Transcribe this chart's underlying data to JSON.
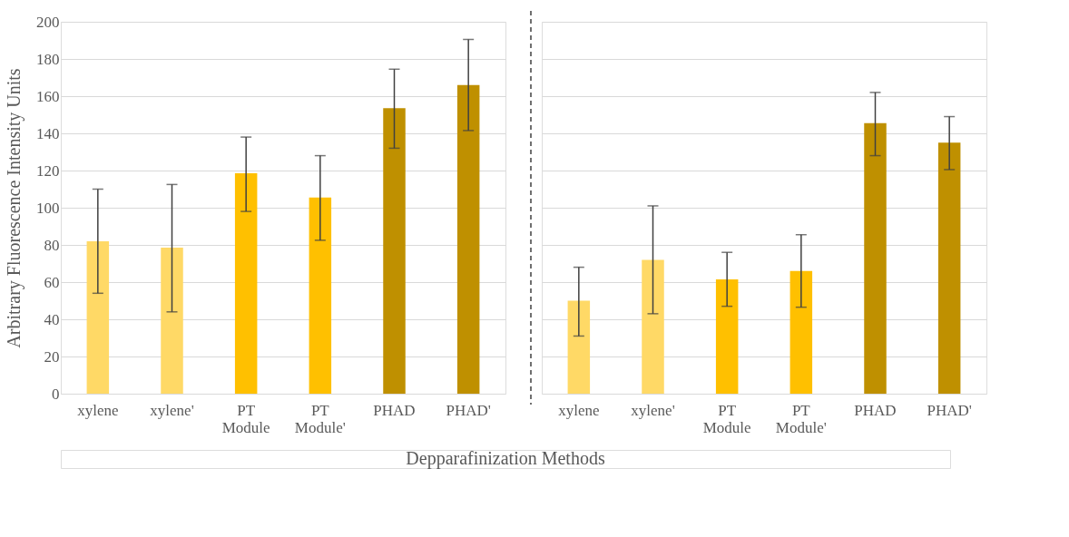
{
  "chart_data": [
    {
      "type": "bar",
      "ylabel": "Arbitrary Fluorescence Intensity Units",
      "xlabel": "Depparafinization Methods",
      "categories": [
        "xylene",
        "xylene'",
        "PT Module",
        "PT Module'",
        "PHAD",
        "PHAD'"
      ],
      "values": [
        82,
        78.5,
        118.5,
        105.5,
        153.5,
        166
      ],
      "errors": [
        [
          54,
          110
        ],
        [
          44,
          112.5
        ],
        [
          98,
          138
        ],
        [
          82.5,
          128
        ],
        [
          132,
          174.5
        ],
        [
          141.5,
          190.5
        ]
      ],
      "colors": [
        "#ffd966",
        "#ffd966",
        "#ffc000",
        "#ffc000",
        "#bf9000",
        "#bf9000"
      ],
      "ylim": [
        0,
        200
      ],
      "yticks": [
        0,
        20,
        40,
        60,
        80,
        100,
        120,
        140,
        160,
        180,
        200
      ],
      "grid": "y"
    },
    {
      "type": "bar",
      "categories": [
        "xylene",
        "xylene'",
        "PT Module",
        "PT Module'",
        "PHAD",
        "PHAD'"
      ],
      "values": [
        50,
        72,
        61.5,
        66,
        145.5,
        135
      ],
      "errors": [
        [
          31,
          68
        ],
        [
          43,
          101
        ],
        [
          47,
          76
        ],
        [
          46.5,
          85.5
        ],
        [
          128,
          162
        ],
        [
          120.5,
          149
        ]
      ],
      "colors": [
        "#ffd966",
        "#ffd966",
        "#ffc000",
        "#ffc000",
        "#bf9000",
        "#bf9000"
      ],
      "ylim": [
        0,
        200
      ],
      "yticks": [
        0,
        20,
        40,
        60,
        80,
        100,
        120,
        140,
        160,
        180,
        200
      ],
      "grid": "y",
      "tick_labels": "x"
    }
  ]
}
